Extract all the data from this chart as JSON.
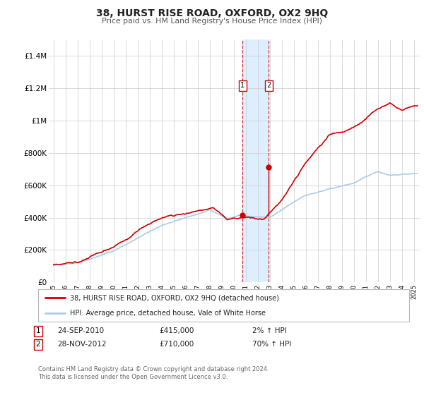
{
  "title": "38, HURST RISE ROAD, OXFORD, OX2 9HQ",
  "subtitle": "Price paid vs. HM Land Registry's House Price Index (HPI)",
  "legend_line1": "38, HURST RISE ROAD, OXFORD, OX2 9HQ (detached house)",
  "legend_line2": "HPI: Average price, detached house, Vale of White Horse",
  "transaction1_date": "24-SEP-2010",
  "transaction1_price": 415000,
  "transaction1_hpi": "2% ↑ HPI",
  "transaction1_year": 2010.73,
  "transaction2_date": "28-NOV-2012",
  "transaction2_price": 710000,
  "transaction2_hpi": "70% ↑ HPI",
  "transaction2_year": 2012.91,
  "ylim": [
    0,
    1500000
  ],
  "xlim_start": 1994.6,
  "xlim_end": 2025.5,
  "hpi_color": "#aacce8",
  "price_color": "#cc0000",
  "shade_color": "#ddeeff",
  "footer_text": "Contains HM Land Registry data © Crown copyright and database right 2024.\nThis data is licensed under the Open Government Licence v3.0.",
  "grid_color": "#cccccc",
  "yticks": [
    0,
    200000,
    400000,
    600000,
    800000,
    1000000,
    1200000,
    1400000
  ],
  "ytick_labels": [
    "£0",
    "£200K",
    "£400K",
    "£600K",
    "£800K",
    "£1M",
    "£1.2M",
    "£1.4M"
  ]
}
